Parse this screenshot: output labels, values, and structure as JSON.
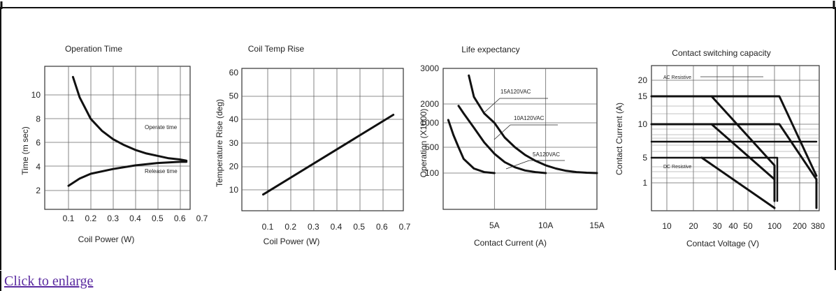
{
  "link": {
    "enlarge": "Click to enlarge"
  },
  "chart_data": [
    {
      "type": "line",
      "title": "Operation Time",
      "xlabel": "Coil Power (W)",
      "ylabel": "Time (m sec)",
      "xlim": [
        0.05,
        0.7
      ],
      "ylim": [
        0.5,
        12
      ],
      "xticks": [
        "0.1",
        "0.2",
        "0.3",
        "0.4",
        "0.5",
        "0.6",
        "0.7"
      ],
      "yticks": [
        "2",
        "4",
        "6",
        "8",
        "10"
      ],
      "grid": true,
      "series": [
        {
          "name": "Operate time",
          "x": [
            0.12,
            0.15,
            0.2,
            0.25,
            0.3,
            0.35,
            0.4,
            0.45,
            0.5,
            0.55,
            0.6,
            0.63
          ],
          "y": [
            11.5,
            9.8,
            8.0,
            7.0,
            6.3,
            5.8,
            5.4,
            5.1,
            4.9,
            4.7,
            4.6,
            4.5
          ]
        },
        {
          "name": "Release time",
          "x": [
            0.1,
            0.15,
            0.2,
            0.3,
            0.4,
            0.5,
            0.6,
            0.63
          ],
          "y": [
            2.4,
            3.0,
            3.4,
            3.8,
            4.1,
            4.3,
            4.4,
            4.4
          ]
        }
      ]
    },
    {
      "type": "line",
      "title": "Coil Temp Rise",
      "xlabel": "Coil Power (W)",
      "ylabel": "Temperature Rise (deg)",
      "xlim": [
        0.0,
        0.7
      ],
      "ylim": [
        0,
        60
      ],
      "xticks": [
        "0.1",
        "0.2",
        "0.3",
        "0.4",
        "0.5",
        "0.6",
        "0.7"
      ],
      "yticks": [
        "10",
        "20",
        "30",
        "40",
        "50",
        "60"
      ],
      "grid": true,
      "series": [
        {
          "x": [
            0.08,
            0.65
          ],
          "y": [
            8,
            42
          ]
        }
      ]
    },
    {
      "type": "line",
      "title": "Life expectancy",
      "xlabel": "Contact Current (A)",
      "ylabel": "Operation (X1000)",
      "xlim": [
        0,
        15
      ],
      "ylim": [
        0,
        3000
      ],
      "xticks": [
        "5A",
        "10A",
        "15A"
      ],
      "yticks": [
        "100",
        "500",
        "1000",
        "2000",
        "3000"
      ],
      "grid": true,
      "annotations": [
        "15A120VAC",
        "10A120VAC",
        "5A120VAC"
      ],
      "series": [
        {
          "name": "15A120VAC",
          "x": [
            2.5,
            3,
            4,
            5,
            6,
            7,
            8,
            9,
            10,
            11,
            12,
            13,
            14,
            15
          ],
          "y": [
            2800,
            2200,
            1500,
            1000,
            700,
            500,
            380,
            290,
            220,
            170,
            135,
            115,
            105,
            100
          ]
        },
        {
          "name": "10A120VAC",
          "x": [
            1.5,
            2,
            3,
            4,
            5,
            6,
            7,
            8,
            9,
            10
          ],
          "y": [
            1900,
            1500,
            900,
            600,
            400,
            270,
            190,
            140,
            115,
            100
          ]
        },
        {
          "name": "5A120VAC",
          "x": [
            0.5,
            1,
            1.5,
            2,
            3,
            4,
            5
          ],
          "y": [
            1150,
            750,
            500,
            320,
            170,
            115,
            100
          ]
        }
      ]
    },
    {
      "type": "line",
      "title": "Contact switching capacity",
      "xlabel": "Contact Voltage (V)",
      "ylabel": "Contact Current (A)",
      "xlim": [
        5,
        380
      ],
      "ylim": [
        0,
        22
      ],
      "xticks": [
        "10",
        "20",
        "30",
        "40",
        "50",
        "100",
        "200",
        "380"
      ],
      "yticks": [
        "1",
        "5",
        "10",
        "15",
        "20"
      ],
      "grid": true,
      "legend_labels": [
        "AC Resistive",
        "DC Resistive"
      ]
    }
  ]
}
